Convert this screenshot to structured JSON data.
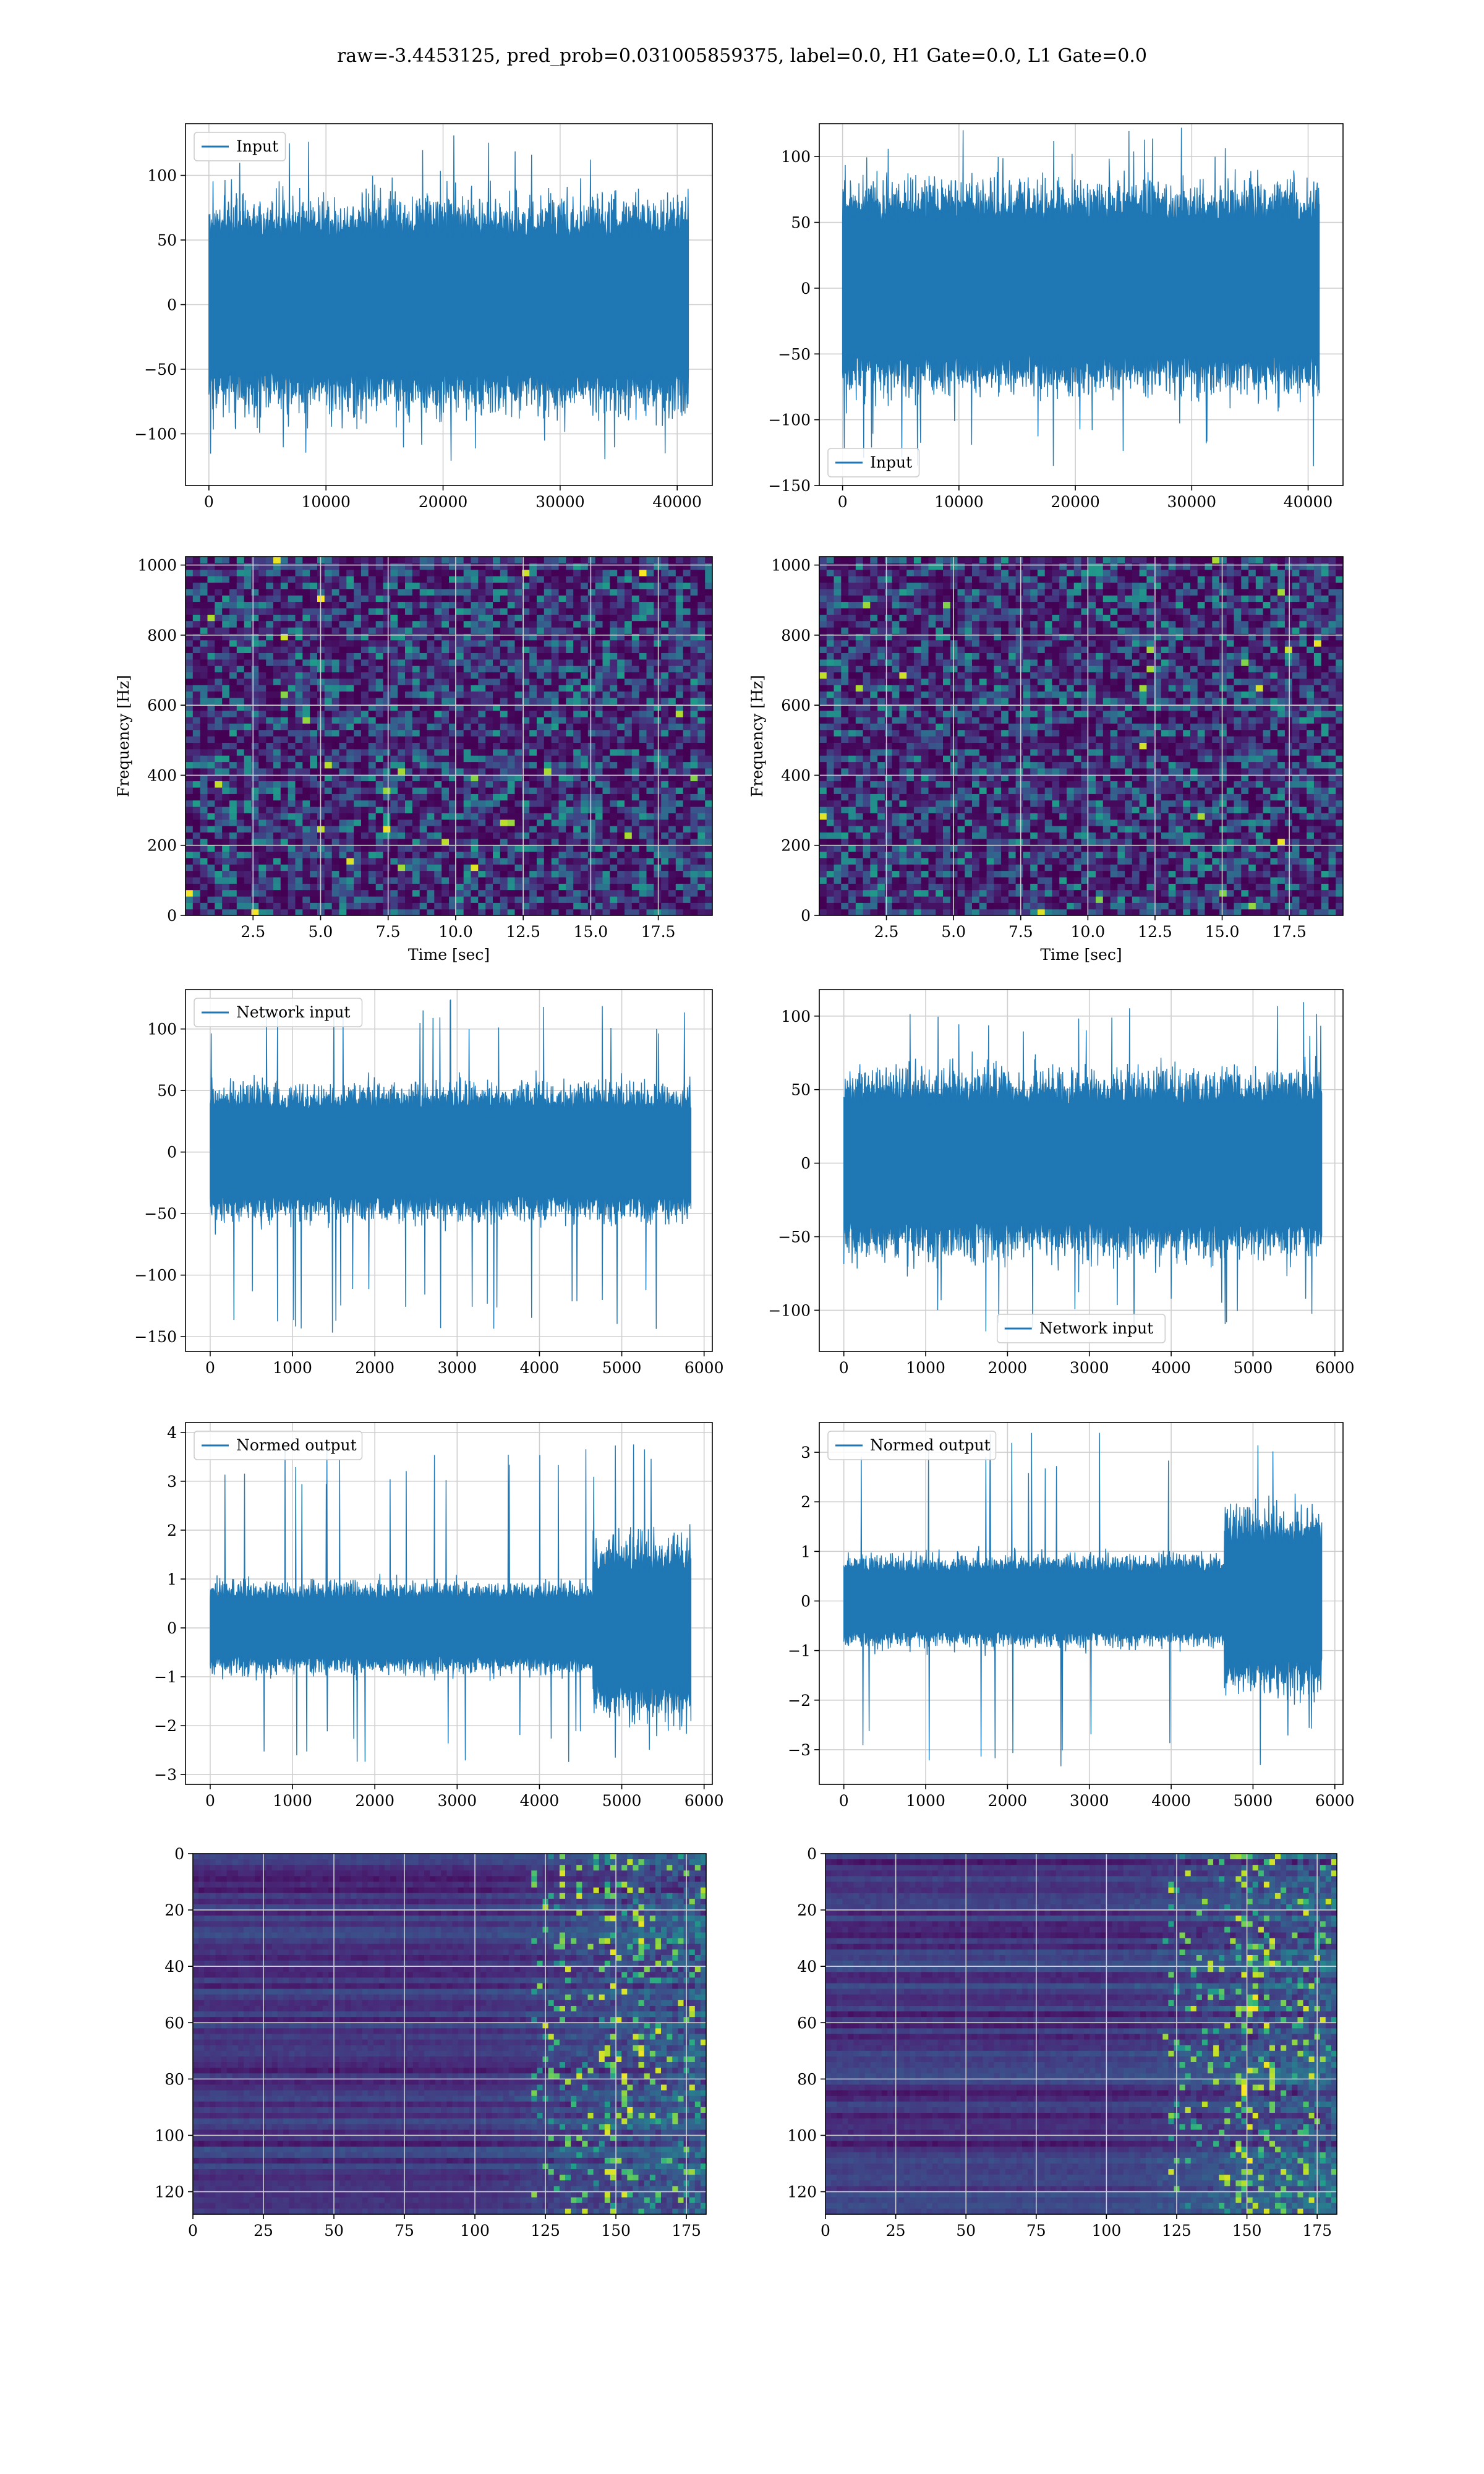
{
  "figure": {
    "suptitle": "raw=-3.4453125, pred_prob=0.031005859375, label=0.0, H1 Gate=0.0, L1 Gate=0.0"
  },
  "chart_data": [
    {
      "id": "input-left",
      "type": "line",
      "color": "#1f77b4",
      "series": [
        {
          "name": "Input"
        }
      ],
      "legend_loc": "upper left",
      "xlim": [
        -2000,
        43000
      ],
      "ylim": [
        -140,
        140
      ],
      "xticks": [
        0,
        10000,
        20000,
        30000,
        40000
      ],
      "xtick_labels": [
        "0",
        "10000",
        "20000",
        "30000",
        "40000"
      ],
      "yticks": [
        -100,
        -50,
        0,
        50,
        100
      ],
      "ytick_labels": [
        "−100",
        "−50",
        "0",
        "50",
        "100"
      ],
      "signal": {
        "n": 40960,
        "bulk": 72,
        "spike_max": 132,
        "spike_min": -125
      }
    },
    {
      "id": "input-right",
      "type": "line",
      "color": "#1f77b4",
      "series": [
        {
          "name": "Input"
        }
      ],
      "legend_loc": "lower left",
      "xlim": [
        -2000,
        43000
      ],
      "ylim": [
        -150,
        125
      ],
      "xticks": [
        0,
        10000,
        20000,
        30000,
        40000
      ],
      "xtick_labels": [
        "0",
        "10000",
        "20000",
        "30000",
        "40000"
      ],
      "yticks": [
        -150,
        -100,
        -50,
        0,
        50,
        100
      ],
      "ytick_labels": [
        "−150",
        "−100",
        "−50",
        "0",
        "50",
        "100"
      ],
      "signal": {
        "n": 40960,
        "bulk": 70,
        "spike_max": 124,
        "spike_min": -140
      }
    },
    {
      "id": "spectrogram-left",
      "type": "heatmap",
      "colormap": "viridis",
      "xlabel": "Time [sec]",
      "ylabel": "Frequency [Hz]",
      "xlim": [
        0,
        19.5
      ],
      "ylim": [
        0,
        1024
      ],
      "xticks": [
        2.5,
        5.0,
        7.5,
        10.0,
        12.5,
        15.0,
        17.5
      ],
      "xtick_labels": [
        "2.5",
        "5.0",
        "7.5",
        "10.0",
        "12.5",
        "15.0",
        "17.5"
      ],
      "yticks": [
        0,
        200,
        400,
        600,
        800,
        1000
      ],
      "ytick_labels": [
        "0",
        "200",
        "400",
        "600",
        "800",
        "1000"
      ]
    },
    {
      "id": "spectrogram-right",
      "type": "heatmap",
      "colormap": "viridis",
      "xlabel": "Time [sec]",
      "ylabel": "Frequency [Hz]",
      "xlim": [
        0,
        19.5
      ],
      "ylim": [
        0,
        1024
      ],
      "xticks": [
        2.5,
        5.0,
        7.5,
        10.0,
        12.5,
        15.0,
        17.5
      ],
      "xtick_labels": [
        "2.5",
        "5.0",
        "7.5",
        "10.0",
        "12.5",
        "15.0",
        "17.5"
      ],
      "yticks": [
        0,
        200,
        400,
        600,
        800,
        1000
      ],
      "ytick_labels": [
        "0",
        "200",
        "400",
        "600",
        "800",
        "1000"
      ]
    },
    {
      "id": "network-input-left",
      "type": "line",
      "color": "#1f77b4",
      "series": [
        {
          "name": "Network input"
        }
      ],
      "legend_loc": "upper left",
      "xlim": [
        -300,
        6100
      ],
      "ylim": [
        -162,
        132
      ],
      "xticks": [
        0,
        1000,
        2000,
        3000,
        4000,
        5000,
        6000
      ],
      "xtick_labels": [
        "0",
        "1000",
        "2000",
        "3000",
        "4000",
        "5000",
        "6000"
      ],
      "yticks": [
        -150,
        -100,
        -50,
        0,
        50,
        100
      ],
      "ytick_labels": [
        "−150",
        "−100",
        "−50",
        "0",
        "50",
        "100"
      ],
      "signal": {
        "n": 5840,
        "bulk": 48,
        "spike_max": 127,
        "spike_min": -148
      }
    },
    {
      "id": "network-input-right",
      "type": "line",
      "color": "#1f77b4",
      "series": [
        {
          "name": "Network input"
        }
      ],
      "legend_loc": "lower center",
      "xlim": [
        -300,
        6100
      ],
      "ylim": [
        -128,
        118
      ],
      "xticks": [
        0,
        1000,
        2000,
        3000,
        4000,
        5000,
        6000
      ],
      "xtick_labels": [
        "0",
        "1000",
        "2000",
        "3000",
        "4000",
        "5000",
        "6000"
      ],
      "yticks": [
        -100,
        -50,
        0,
        50,
        100
      ],
      "ytick_labels": [
        "−100",
        "−50",
        "0",
        "50",
        "100"
      ],
      "signal": {
        "n": 5840,
        "bulk": 55,
        "spike_max": 110,
        "spike_min": -117
      }
    },
    {
      "id": "normed-output-left",
      "type": "line",
      "color": "#1f77b4",
      "series": [
        {
          "name": "Normed output"
        }
      ],
      "legend_loc": "upper left",
      "xlim": [
        -300,
        6100
      ],
      "ylim": [
        -3.2,
        4.2
      ],
      "xticks": [
        0,
        1000,
        2000,
        3000,
        4000,
        5000,
        6000
      ],
      "xtick_labels": [
        "0",
        "1000",
        "2000",
        "3000",
        "4000",
        "5000",
        "6000"
      ],
      "yticks": [
        -3,
        -2,
        -1,
        0,
        1,
        2,
        3,
        4
      ],
      "ytick_labels": [
        "−3",
        "−2",
        "−1",
        "0",
        "1",
        "2",
        "3",
        "4"
      ],
      "signal": {
        "n": 5840,
        "bulk": 0.8,
        "late_start": 4650,
        "late_bulk": 1.6,
        "spike_max": 3.8,
        "spike_min": -2.8
      }
    },
    {
      "id": "normed-output-right",
      "type": "line",
      "color": "#1f77b4",
      "series": [
        {
          "name": "Normed output"
        }
      ],
      "legend_loc": "upper left",
      "xlim": [
        -300,
        6100
      ],
      "ylim": [
        -3.7,
        3.6
      ],
      "xticks": [
        0,
        1000,
        2000,
        3000,
        4000,
        5000,
        6000
      ],
      "xtick_labels": [
        "0",
        "1000",
        "2000",
        "3000",
        "4000",
        "5000",
        "6000"
      ],
      "yticks": [
        -3,
        -2,
        -1,
        0,
        1,
        2,
        3
      ],
      "ytick_labels": [
        "−3",
        "−2",
        "−1",
        "0",
        "1",
        "2",
        "3"
      ],
      "signal": {
        "n": 5840,
        "bulk": 0.8,
        "late_start": 4650,
        "late_bulk": 1.6,
        "spike_max": 3.4,
        "spike_min": -3.4
      }
    },
    {
      "id": "feature-map-left",
      "type": "heatmap",
      "colormap": "viridis",
      "xlim": [
        0,
        182
      ],
      "ylim": [
        128,
        0
      ],
      "xticks": [
        0,
        25,
        50,
        75,
        100,
        125,
        150,
        175
      ],
      "xtick_labels": [
        "0",
        "25",
        "50",
        "75",
        "100",
        "125",
        "150",
        "175"
      ],
      "yticks": [
        0,
        20,
        40,
        60,
        80,
        100,
        120
      ],
      "ytick_labels": [
        "0",
        "20",
        "40",
        "60",
        "80",
        "100",
        "120"
      ]
    },
    {
      "id": "feature-map-right",
      "type": "heatmap",
      "colormap": "viridis",
      "xlim": [
        0,
        182
      ],
      "ylim": [
        128,
        0
      ],
      "xticks": [
        0,
        25,
        50,
        75,
        100,
        125,
        150,
        175
      ],
      "xtick_labels": [
        "0",
        "25",
        "50",
        "75",
        "100",
        "125",
        "150",
        "175"
      ],
      "yticks": [
        0,
        20,
        40,
        60,
        80,
        100,
        120
      ],
      "ytick_labels": [
        "0",
        "20",
        "40",
        "60",
        "80",
        "100",
        "120"
      ]
    }
  ]
}
